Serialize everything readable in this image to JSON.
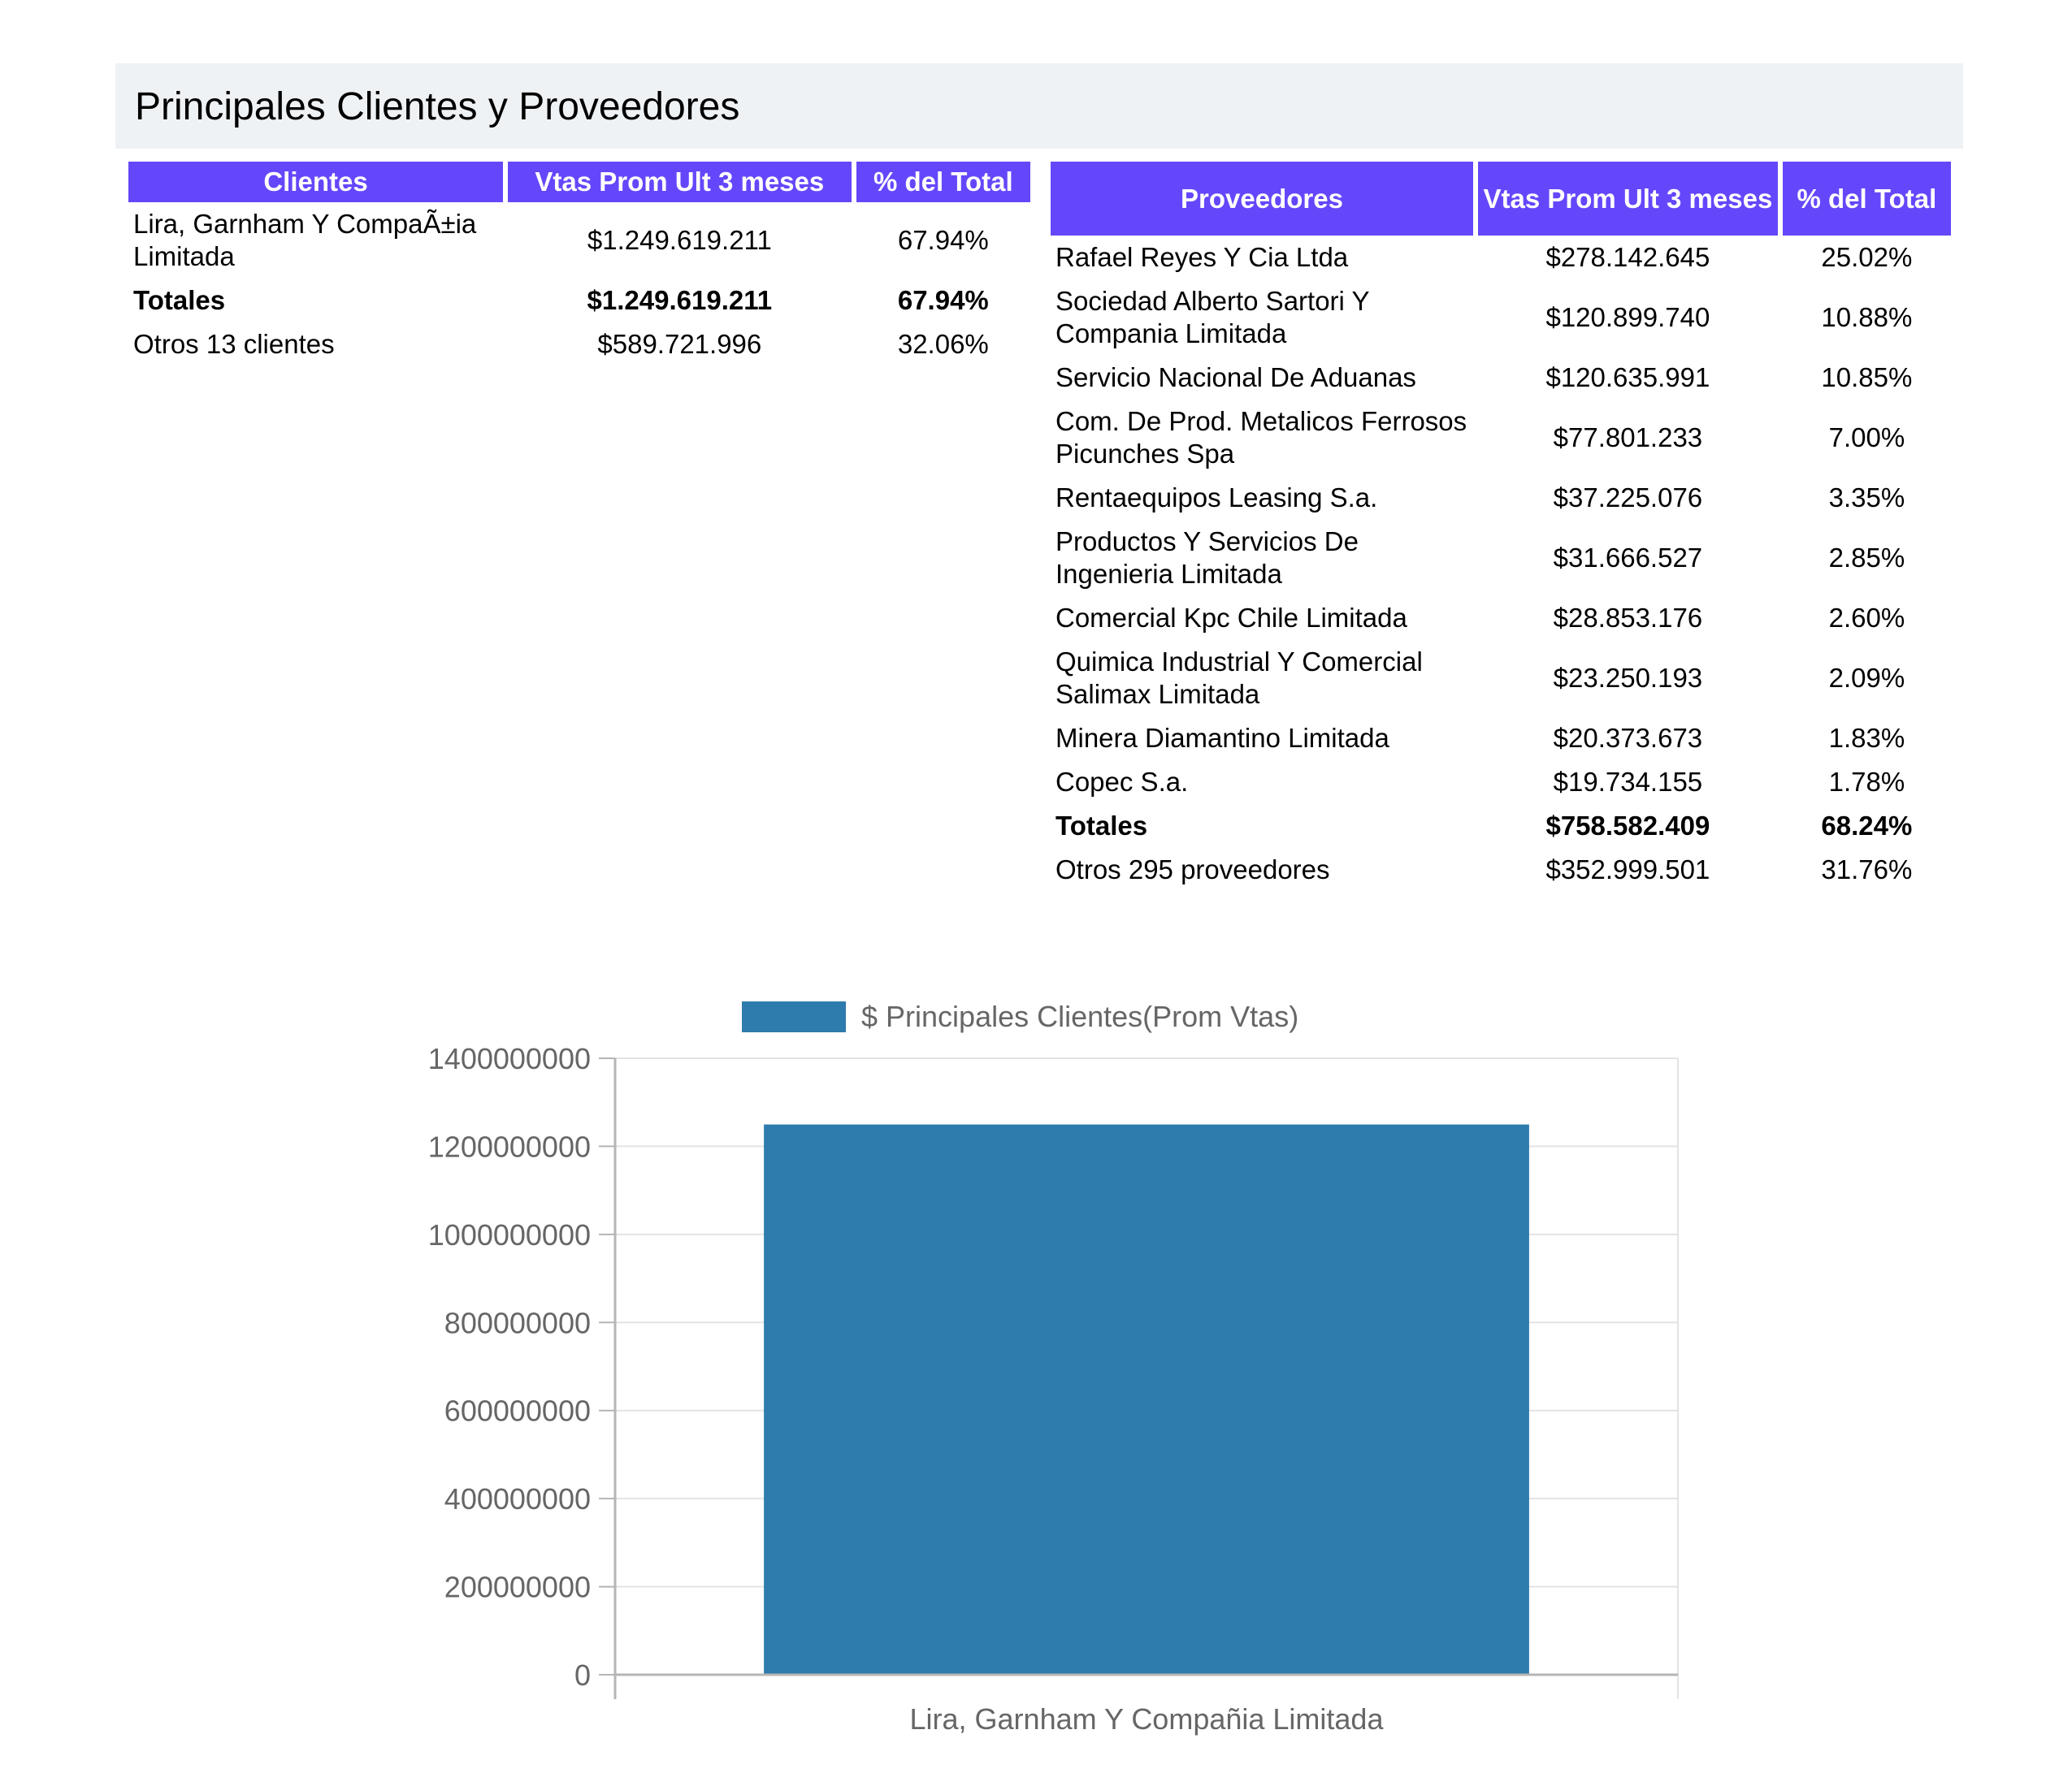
{
  "page_title": "Principales Clientes y Proveedores",
  "clientes": {
    "headers": [
      "Clientes",
      "Vtas Prom Ult 3 meses",
      "% del Total"
    ],
    "rows": [
      {
        "name": "Lira, Garnham Y CompaÃ±ia Limitada",
        "value": "$1.249.619.211",
        "pct": "67.94%"
      }
    ],
    "totals": {
      "name": "Totales",
      "value": "$1.249.619.211",
      "pct": "67.94%"
    },
    "others": {
      "name": "Otros 13 clientes",
      "value": "$589.721.996",
      "pct": "32.06%"
    }
  },
  "proveedores": {
    "headers": [
      "Proveedores",
      "Vtas Prom Ult 3 meses",
      "% del Total"
    ],
    "rows": [
      {
        "name": "Rafael Reyes Y Cia Ltda",
        "value": "$278.142.645",
        "pct": "25.02%"
      },
      {
        "name": "Sociedad Alberto Sartori Y Compania Limitada",
        "value": "$120.899.740",
        "pct": "10.88%"
      },
      {
        "name": "Servicio Nacional De Aduanas",
        "value": "$120.635.991",
        "pct": "10.85%"
      },
      {
        "name": "Com. De Prod. Metalicos Ferrosos Picunches Spa",
        "value": "$77.801.233",
        "pct": "7.00%"
      },
      {
        "name": "Rentaequipos Leasing S.a.",
        "value": "$37.225.076",
        "pct": "3.35%"
      },
      {
        "name": "Productos Y Servicios De Ingenieria Limitada",
        "value": "$31.666.527",
        "pct": "2.85%"
      },
      {
        "name": "Comercial Kpc Chile Limitada",
        "value": "$28.853.176",
        "pct": "2.60%"
      },
      {
        "name": "Quimica Industrial Y Comercial Salimax Limitada",
        "value": "$23.250.193",
        "pct": "2.09%"
      },
      {
        "name": "Minera Diamantino Limitada",
        "value": "$20.373.673",
        "pct": "1.83%"
      },
      {
        "name": "Copec S.a.",
        "value": "$19.734.155",
        "pct": "1.78%"
      }
    ],
    "totals": {
      "name": "Totales",
      "value": "$758.582.409",
      "pct": "68.24%"
    },
    "others": {
      "name": "Otros 295 proveedores",
      "value": "$352.999.501",
      "pct": "31.76%"
    }
  },
  "chart_data": {
    "type": "bar",
    "categories": [
      "Lira, Garnham Y Compañia Limitada"
    ],
    "series": [
      {
        "name": "$ Principales Clientes(Prom Vtas)",
        "values": [
          1249619211
        ],
        "color": "#2e7bad"
      }
    ],
    "ylim": [
      0,
      1400000000
    ],
    "yticks": [
      0,
      200000000,
      400000000,
      600000000,
      800000000,
      1000000000,
      1200000000,
      1400000000
    ],
    "legend_position": "top",
    "grid": true
  }
}
